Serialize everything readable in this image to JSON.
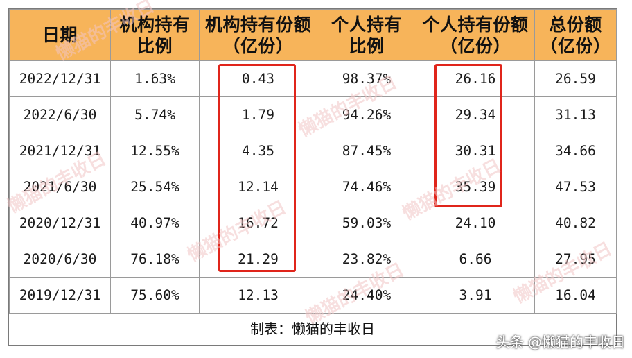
{
  "table": {
    "headers": [
      "日期",
      "机构持有\n比例",
      "机构持有份额\n（亿份）",
      "个人持有\n比例",
      "个人持有份额\n（亿份）",
      "总份额\n（亿份）"
    ],
    "rows": [
      [
        "2022/12/31",
        "1.63%",
        "0.43",
        "98.37%",
        "26.16",
        "26.59"
      ],
      [
        "2022/6/30",
        "5.74%",
        "1.79",
        "94.26%",
        "29.34",
        "31.13"
      ],
      [
        "2021/12/31",
        "12.55%",
        "4.35",
        "87.45%",
        "30.31",
        "34.66"
      ],
      [
        "2021/6/30",
        "25.54%",
        "12.14",
        "74.46%",
        "35.39",
        "47.53"
      ],
      [
        "2020/12/31",
        "40.97%",
        "16.72",
        "59.03%",
        "24.10",
        "40.82"
      ],
      [
        "2020/6/30",
        "76.18%",
        "21.29",
        "23.82%",
        "6.66",
        "27.95"
      ],
      [
        "2019/12/31",
        "75.60%",
        "12.13",
        "24.40%",
        "3.91",
        "16.04"
      ]
    ]
  },
  "caption": "制表：懒猫的丰收日",
  "watermark": {
    "stamp": "懒猫的丰收日",
    "corner": "头条 @懒猫的丰收日"
  },
  "colors": {
    "header_bg": "#f7b45a",
    "highlight_border": "#e0251b",
    "grid": "#9a9a9a"
  }
}
